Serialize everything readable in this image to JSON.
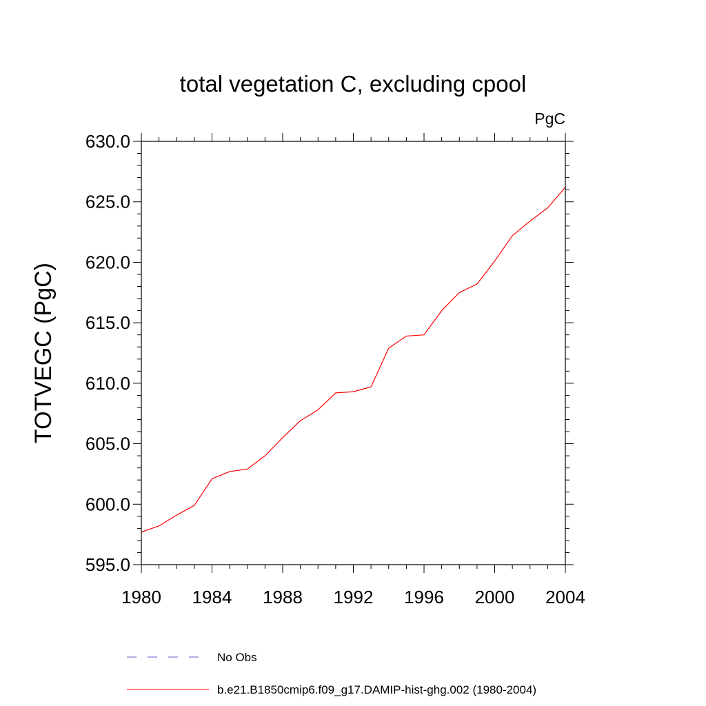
{
  "chart_data": {
    "type": "line",
    "title": "total vegetation C, excluding cpool",
    "units": "PgC",
    "ylabel": "TOTVEGC  (PgC)",
    "xlabel": "",
    "xlim": [
      1980,
      2004
    ],
    "ylim": [
      595.0,
      630.0
    ],
    "xticks": [
      1980,
      1984,
      1988,
      1992,
      1996,
      2000,
      2004
    ],
    "xtick_labels": [
      "1980",
      "1984",
      "1988",
      "1992",
      "1996",
      "2000",
      "2004"
    ],
    "yticks": [
      595.0,
      600.0,
      605.0,
      610.0,
      615.0,
      620.0,
      625.0,
      630.0
    ],
    "ytick_labels": [
      "595.0",
      "600.0",
      "605.0",
      "610.0",
      "615.0",
      "620.0",
      "625.0",
      "630.0"
    ],
    "grid": false,
    "legend_position": "bottom",
    "series": [
      {
        "name": "b.e21.B1850cmip6.f09_g17.DAMIP-hist-ghg.002 (1980-2004)",
        "color": "#ff0000",
        "style": "solid",
        "x": [
          1980,
          1981,
          1982,
          1983,
          1984,
          1985,
          1986,
          1987,
          1988,
          1989,
          1990,
          1991,
          1992,
          1993,
          1994,
          1995,
          1996,
          1997,
          1998,
          1999,
          2000,
          2001,
          2002,
          2003,
          2004
        ],
        "y": [
          597.7,
          598.2,
          599.1,
          599.9,
          602.1,
          602.7,
          602.9,
          604.0,
          605.5,
          606.9,
          607.8,
          609.2,
          609.3,
          609.7,
          612.9,
          613.9,
          614.0,
          616.0,
          617.5,
          618.2,
          620.1,
          622.2,
          623.4,
          624.5,
          626.2
        ]
      }
    ],
    "legend": [
      {
        "label": "No Obs",
        "color": "#6a5acd",
        "style": "dashed"
      },
      {
        "label": "b.e21.B1850cmip6.f09_g17.DAMIP-hist-ghg.002 (1980-2004)",
        "color": "#ff0000",
        "style": "solid"
      }
    ]
  }
}
